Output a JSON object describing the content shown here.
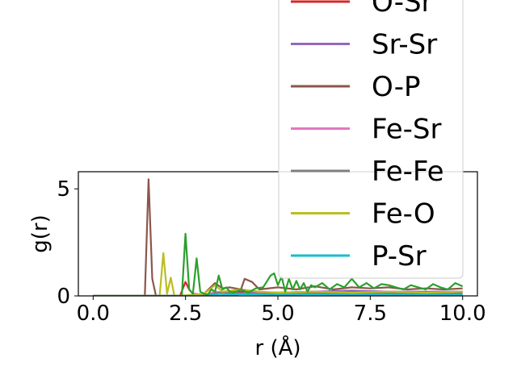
{
  "chart_data": {
    "type": "line",
    "xlabel": "r (Å)",
    "ylabel": "g(r)",
    "xlim": [
      -0.4,
      10.4
    ],
    "ylim": [
      0,
      5.8
    ],
    "xticks": [
      0.0,
      2.5,
      5.0,
      7.5,
      10.0
    ],
    "xtick_labels": [
      "0.0",
      "2.5",
      "5.0",
      "7.5",
      "10.0"
    ],
    "yticks": [
      0,
      5
    ],
    "ytick_labels": [
      "0",
      "5"
    ],
    "grid": false,
    "legend_placement": "upper-right, extending above plot",
    "series": [
      {
        "name": "O-Sr",
        "color": "#d62728",
        "x": [
          0,
          2.35,
          2.5,
          2.6,
          2.7,
          3.0,
          3.3,
          4.0,
          5.0,
          6.0,
          7.0,
          8.0,
          9.0,
          10.0
        ],
        "y": [
          0,
          0,
          0.65,
          0.3,
          0.1,
          0.05,
          0.15,
          0.2,
          0.15,
          0.2,
          0.18,
          0.2,
          0.15,
          0.2
        ]
      },
      {
        "name": "Sr-Sr",
        "color": "#9467bd",
        "x": [
          0,
          3.8,
          4.2,
          5.0,
          6.0,
          7.0,
          8.0,
          9.0,
          10.0
        ],
        "y": [
          0,
          0,
          0.2,
          0.15,
          0.2,
          0.25,
          0.2,
          0.2,
          0.2
        ]
      },
      {
        "name": "O-P",
        "color": "#8c564b",
        "x": [
          0,
          1.4,
          1.5,
          1.6,
          1.7,
          2.5,
          3.0,
          3.3,
          3.5,
          3.7,
          4.0,
          4.1,
          4.3,
          4.5,
          5.0,
          5.5,
          6.0,
          6.5,
          7.0,
          7.5,
          8.0,
          8.5,
          9.0,
          9.5,
          10.0
        ],
        "y": [
          0,
          0,
          5.45,
          0.8,
          0,
          0,
          0.1,
          0.6,
          0.35,
          0.4,
          0.3,
          0.8,
          0.65,
          0.3,
          0.4,
          0.3,
          0.45,
          0.3,
          0.4,
          0.35,
          0.4,
          0.3,
          0.35,
          0.3,
          0.35
        ]
      },
      {
        "name": "Fe-Sr",
        "color": "#e377c2",
        "x": [
          0,
          3.0,
          3.3,
          4.0,
          5.0,
          6.0,
          7.0,
          8.0,
          9.0,
          10.0
        ],
        "y": [
          0,
          0,
          0.2,
          0.1,
          0.15,
          0.1,
          0.15,
          0.1,
          0.12,
          0.1
        ]
      },
      {
        "name": "Fe-Fe",
        "color": "#7f7f7f",
        "x": [
          0,
          3.0,
          3.4,
          4.5,
          5.5,
          6.5,
          7.5,
          8.5,
          9.5,
          10.0
        ],
        "y": [
          0,
          0,
          0.15,
          0.1,
          0.15,
          0.1,
          0.15,
          0.12,
          0.1,
          0.12
        ]
      },
      {
        "name": "Fe-O",
        "color": "#bcbd22",
        "x": [
          0,
          1.8,
          1.9,
          2.0,
          2.1,
          2.2,
          2.3,
          3.0,
          3.3,
          3.5,
          4.0,
          4.5,
          5.0,
          6.0,
          7.0,
          8.0,
          9.0,
          10.0
        ],
        "y": [
          0,
          0,
          2.0,
          0.1,
          0.85,
          0,
          0,
          0.1,
          0.5,
          0.2,
          0.3,
          0.2,
          0.15,
          0.2,
          0.15,
          0.2,
          0.15,
          0.2
        ]
      },
      {
        "name": "P-Sr",
        "color": "#17becf",
        "x": [
          0,
          3.0,
          3.3,
          4.0,
          5.0,
          6.0,
          7.0,
          8.0,
          9.0,
          10.0
        ],
        "y": [
          0,
          0,
          0.05,
          0.08,
          0.05,
          0.07,
          0.05,
          0.06,
          0.05,
          0.06
        ]
      },
      {
        "name": "",
        "color": "#2ca02c",
        "x": [
          0,
          2.4,
          2.5,
          2.6,
          2.7,
          2.8,
          2.9,
          3.0,
          3.1,
          3.2,
          3.3,
          3.4,
          3.5,
          3.6,
          3.7,
          3.8,
          4.0,
          4.2,
          4.4,
          4.6,
          4.8,
          4.9,
          5.0,
          5.1,
          5.2,
          5.3,
          5.4,
          5.5,
          5.6,
          5.7,
          5.8,
          5.9,
          6.0,
          6.2,
          6.4,
          6.6,
          6.8,
          7.0,
          7.2,
          7.4,
          7.6,
          7.8,
          8.0,
          8.2,
          8.4,
          8.6,
          8.8,
          9.0,
          9.2,
          9.4,
          9.6,
          9.8,
          10.0
        ],
        "y": [
          0,
          0,
          2.9,
          0.3,
          0.1,
          1.75,
          0.2,
          0.1,
          0.05,
          0.3,
          0.2,
          0.95,
          0.3,
          0.4,
          0.2,
          0.15,
          0.3,
          0.15,
          0.35,
          0.4,
          0.95,
          1.05,
          0.5,
          0.9,
          0.2,
          0.8,
          0.3,
          0.7,
          0.3,
          0.6,
          0.2,
          0.5,
          0.4,
          0.6,
          0.3,
          0.55,
          0.4,
          0.8,
          0.4,
          0.6,
          0.35,
          0.55,
          0.5,
          0.4,
          0.3,
          0.5,
          0.4,
          0.3,
          0.55,
          0.4,
          0.3,
          0.6,
          0.45
        ]
      }
    ]
  }
}
